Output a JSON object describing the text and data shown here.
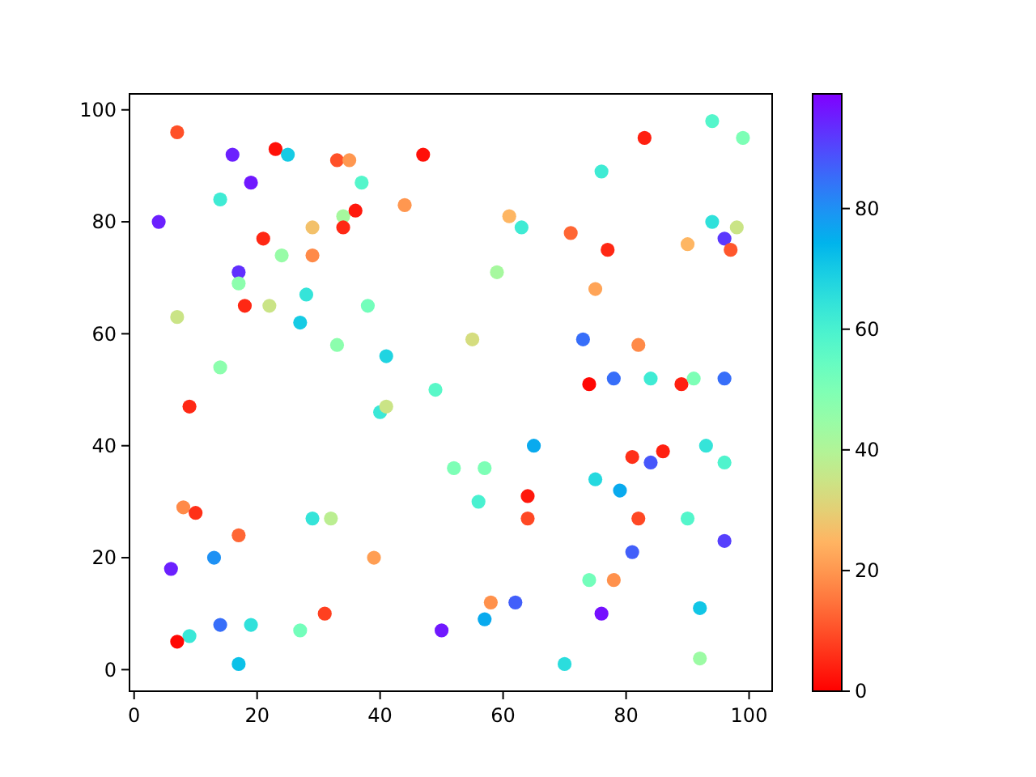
{
  "chart_data": {
    "type": "scatter",
    "x": [
      7,
      16,
      23,
      25,
      33,
      35,
      47,
      19,
      37,
      14,
      4,
      34,
      36,
      44,
      29,
      34,
      21,
      24,
      29,
      17,
      17,
      28,
      7,
      18,
      22,
      38,
      27,
      33,
      41,
      14,
      49,
      94,
      99,
      83,
      76,
      61,
      63,
      71,
      77,
      94,
      98,
      96,
      97,
      90,
      59,
      75,
      55,
      73,
      82,
      74,
      78,
      84,
      89,
      91,
      96,
      9,
      40,
      41,
      52,
      8,
      10,
      17,
      29,
      32,
      13,
      6,
      39,
      14,
      19,
      9,
      7,
      27,
      31,
      17,
      50,
      65,
      57,
      56,
      64,
      64,
      75,
      79,
      81,
      86,
      84,
      93,
      96,
      82,
      90,
      96,
      81,
      74,
      78,
      58,
      62,
      57,
      76,
      92,
      70,
      92
    ],
    "values": [
      96,
      92,
      93,
      92,
      91,
      91,
      92,
      87,
      87,
      84,
      80,
      81,
      82,
      83,
      79,
      79,
      77,
      74,
      74,
      71,
      69,
      67,
      63,
      65,
      65,
      65,
      62,
      58,
      56,
      54,
      50,
      98,
      95,
      95,
      89,
      81,
      79,
      78,
      75,
      80,
      79,
      77,
      75,
      76,
      71,
      68,
      59,
      59,
      58,
      51,
      52,
      52,
      51,
      52,
      52,
      47,
      46,
      47,
      36,
      29,
      28,
      24,
      27,
      27,
      20,
      18,
      20,
      8,
      8,
      6,
      5,
      7,
      10,
      1,
      7,
      40,
      36,
      30,
      31,
      27,
      34,
      32,
      38,
      39,
      37,
      40,
      37,
      27,
      27,
      23,
      21,
      16,
      16,
      12,
      12,
      9,
      10,
      11,
      1,
      2
    ],
    "cvalues": [
      10,
      95,
      2,
      70,
      10,
      20,
      2,
      96,
      58,
      62,
      95,
      42,
      3,
      20,
      27,
      5,
      5,
      45,
      18,
      93,
      47,
      64,
      35,
      5,
      35,
      52,
      70,
      47,
      68,
      47,
      57,
      58,
      50,
      4,
      62,
      25,
      62,
      13,
      5,
      65,
      35,
      92,
      11,
      25,
      42,
      22,
      33,
      85,
      18,
      1,
      85,
      62,
      4,
      50,
      85,
      5,
      63,
      35,
      50,
      18,
      6,
      13,
      64,
      38,
      80,
      95,
      21,
      85,
      65,
      63,
      1,
      52,
      8,
      72,
      96,
      76,
      50,
      60,
      3,
      9,
      67,
      76,
      6,
      4,
      88,
      64,
      59,
      9,
      58,
      91,
      87,
      52,
      19,
      19,
      87,
      76,
      97,
      71,
      66,
      44
    ],
    "xlim": [
      -0.75,
      103.75
    ],
    "ylim": [
      -3.85,
      102.85
    ],
    "xticks": [
      0,
      20,
      40,
      60,
      80,
      100
    ],
    "yticks": [
      0,
      20,
      40,
      60,
      80,
      100
    ],
    "clim": [
      0,
      99
    ],
    "cticks": [
      0,
      20,
      40,
      60,
      80
    ],
    "marker": "circle"
  }
}
